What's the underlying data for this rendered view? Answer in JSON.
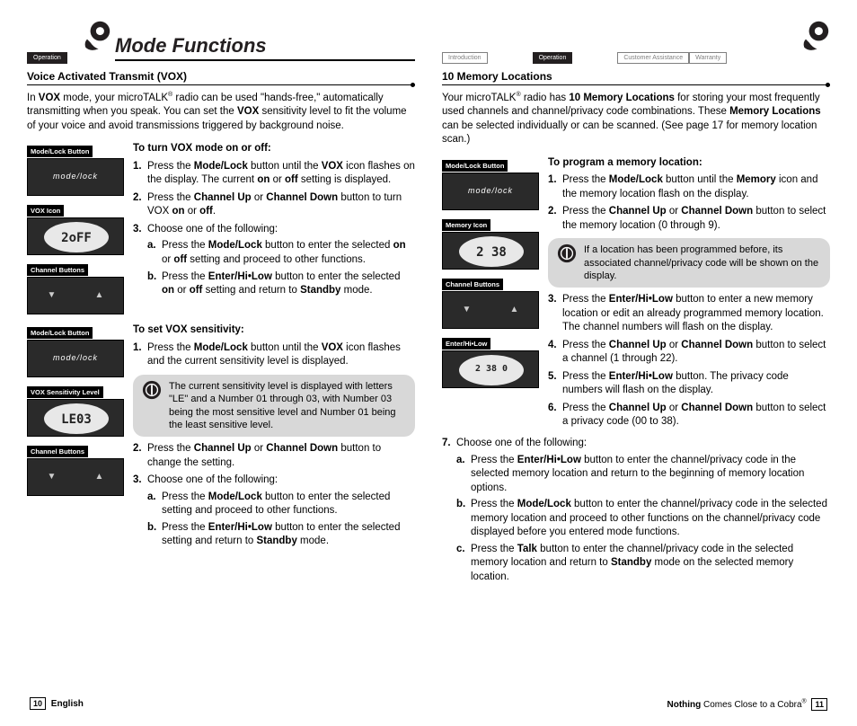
{
  "header": {
    "title": "Mode Functions",
    "tab_operation": "Operation",
    "tab_intro": "Introduction",
    "tab_cust": "Customer Assistance",
    "tab_warr": "Warranty"
  },
  "left": {
    "section_title": "Voice Activated Transmit (VOX)",
    "intro_html": "In <b>VOX</b> mode, your microTALK<sup>®</sup> radio can be used \"hands-free,\" automatically transmitting when you speak. You can set the <b>VOX</b> sensitivity level to fit the volume of your voice and avoid transmissions triggered by background noise.",
    "thumbs1": {
      "l1": "Mode/Lock Button",
      "l2": "VOX Icon",
      "l3": "Channel Buttons"
    },
    "thumbs2": {
      "l1": "Mode/Lock Button",
      "l2": "VOX Sensitivity Level",
      "l3": "Channel Buttons"
    },
    "block1": {
      "title": "To turn VOX mode on or off:",
      "s1": "Press the <b>Mode/Lock</b> button until the <b>VOX</b> icon flashes on the display. The current <b>on</b> or <b>off</b> setting is displayed.",
      "s2": "Press the <b>Channel Up</b> or <b>Channel Down</b> button to turn VOX <b>on</b> or <b>off</b>.",
      "s3": "Choose one of the following:",
      "s3a": "Press the <b>Mode/Lock</b> button to enter the selected <b>on</b> or <b>off</b> setting and proceed to other functions.",
      "s3b": "Press the <b>Enter/Hi•Low</b> button to enter the selected <b>on</b> or <b>off</b> setting and return to <b>Standby</b> mode."
    },
    "block2": {
      "title": "To set VOX sensitivity:",
      "s1": "Press the <b>Mode/Lock</b> button until the <b>VOX</b> icon flashes and the current sensitivity level is displayed.",
      "note": "The current sensitivity level is displayed with letters \"LE\" and a Number 01 through 03, with Number 03 being the most sensitive level and Number 01 being the least sensitive level.",
      "s2": "Press the <b>Channel Up</b> or <b>Channel Down</b> button to change the setting.",
      "s3": "Choose one of the following:",
      "s3a": "Press the <b>Mode/Lock</b> button to enter the selected setting and proceed to other functions.",
      "s3b": "Press the <b>Enter/Hi•Low</b> button to enter the selected setting and return to <b>Standby</b> mode."
    }
  },
  "right": {
    "section_title": "10 Memory Locations",
    "intro_html": "Your microTALK<sup>®</sup> radio has <b>10 Memory Locations</b> for storing your most frequently used channels and channel/privacy code combinations. These <b>Memory Locations</b> can be selected individually or can be scanned. (See page 17 for memory location scan.)",
    "thumbs": {
      "l1": "Mode/Lock Button",
      "l2": "Memory Icon",
      "l3": "Channel Buttons",
      "l4": "Enter/Hi•Low"
    },
    "block": {
      "title": "To program a memory location:",
      "s1": "Press the <b>Mode/Lock</b> button until the <b>Memory</b> icon and the memory location flash on the display.",
      "s2": "Press the <b>Channel Up</b> or <b>Channel Down</b> button to select the memory location (0 through 9).",
      "note": "If a location has been programmed before, its associated channel/privacy code will be shown on the display.",
      "s3": "Press the <b>Enter/Hi•Low</b> button to enter a new memory location or edit an already programmed memory location. The channel numbers will flash on the display.",
      "s4": "Press the <b>Channel Up</b> or <b>Channel Down</b> button to select a channel (1 through 22).",
      "s5": "Press the <b>Enter/Hi•Low</b> button. The privacy code numbers will flash on the display.",
      "s6": "Press the <b>Channel Up</b> or <b>Channel Down</b> button to select a privacy code (00 to 38).",
      "s7": "Choose one of the following:",
      "s7a": "Press the <b>Enter/Hi•Low</b> button to enter the channel/privacy code in the selected memory location and return to the beginning of memory location options.",
      "s7b": "Press the <b>Mode/Lock</b> button to enter the channel/privacy code in the selected memory location and proceed to other functions on the channel/privacy code displayed before you entered mode functions.",
      "s7c": "Press the <b>Talk</b> button to enter the channel/privacy code in the selected memory location and return to <b>Standby</b> mode on the selected memory location."
    }
  },
  "footer": {
    "left_lang": "English",
    "left_num": "10",
    "right_tag": "<b>Nothing</b> Comes Close to a Cobra<sup>®</sup>",
    "right_num": "11"
  }
}
